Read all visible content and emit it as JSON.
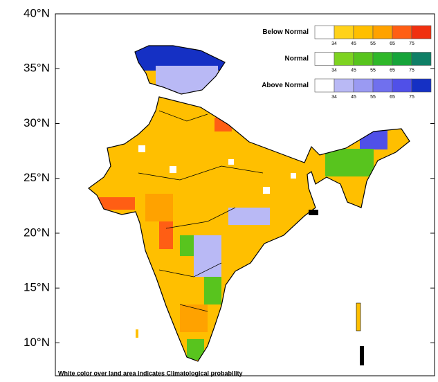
{
  "map": {
    "lat_labels": [
      {
        "value": 40,
        "label": "40°N"
      },
      {
        "value": 35,
        "label": "35°N"
      },
      {
        "value": 30,
        "label": "30°N"
      },
      {
        "value": 25,
        "label": "25°N"
      },
      {
        "value": 20,
        "label": "20°N"
      },
      {
        "value": 15,
        "label": "15°N"
      },
      {
        "value": 10,
        "label": "10°N"
      }
    ],
    "lat_range": [
      7,
      40
    ],
    "legend": [
      {
        "name": "Below Normal",
        "colors": [
          "#ffffff",
          "#ffd21a",
          "#ffbf00",
          "#ffa200",
          "#ff5e14",
          "#f03010"
        ]
      },
      {
        "name": "Normal",
        "colors": [
          "#ffffff",
          "#7ed321",
          "#58c41e",
          "#2fb82a",
          "#16a43a",
          "#0f7f66"
        ]
      },
      {
        "name": "Above Normal",
        "colors": [
          "#ffffff",
          "#b9b9f5",
          "#9a9af2",
          "#7070ee",
          "#5050e8",
          "#1530c4"
        ]
      }
    ],
    "legend_ticks": [
      34,
      45,
      55,
      65,
      75
    ],
    "footnote": "White color over land area indicates Climatological probability"
  }
}
